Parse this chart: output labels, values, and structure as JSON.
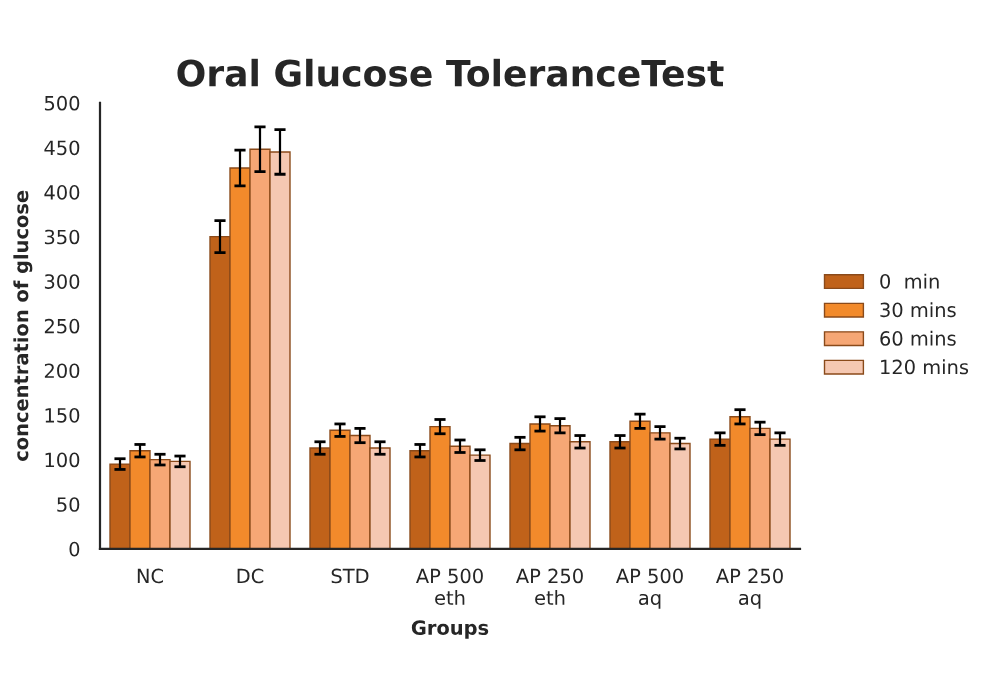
{
  "chart_data": {
    "type": "bar",
    "title": "Oral Glucose ToleranceTest",
    "xlabel": "Groups",
    "ylabel": "concentration of glucose",
    "categories": [
      "NC",
      "DC",
      "STD",
      "AP 500\neth",
      "AP 250\neth",
      "AP 500\naq",
      "AP 250\naq"
    ],
    "series": [
      {
        "name": "0  min",
        "color": "#c0621a",
        "values": [
          95,
          350,
          113,
          110,
          118,
          120,
          123
        ],
        "errors": [
          6,
          18,
          7,
          7,
          7,
          7,
          7
        ]
      },
      {
        "name": "30 mins",
        "color": "#f28a2b",
        "values": [
          110,
          427,
          133,
          137,
          140,
          143,
          148
        ],
        "errors": [
          7,
          20,
          7,
          8,
          8,
          8,
          8
        ]
      },
      {
        "name": "60 mins",
        "color": "#f6a775",
        "values": [
          100,
          448,
          127,
          115,
          138,
          130,
          135
        ],
        "errors": [
          6,
          25,
          8,
          7,
          8,
          7,
          7
        ]
      },
      {
        "name": "120 mins",
        "color": "#f5c8b2",
        "values": [
          98,
          445,
          113,
          105,
          120,
          118,
          123
        ],
        "errors": [
          6,
          25,
          7,
          6,
          7,
          6,
          7
        ]
      }
    ],
    "ylim": [
      0,
      500
    ],
    "yticks": [
      0,
      50,
      100,
      150,
      200,
      250,
      300,
      350,
      400,
      450,
      500
    ],
    "grid": false,
    "legend": "right"
  }
}
